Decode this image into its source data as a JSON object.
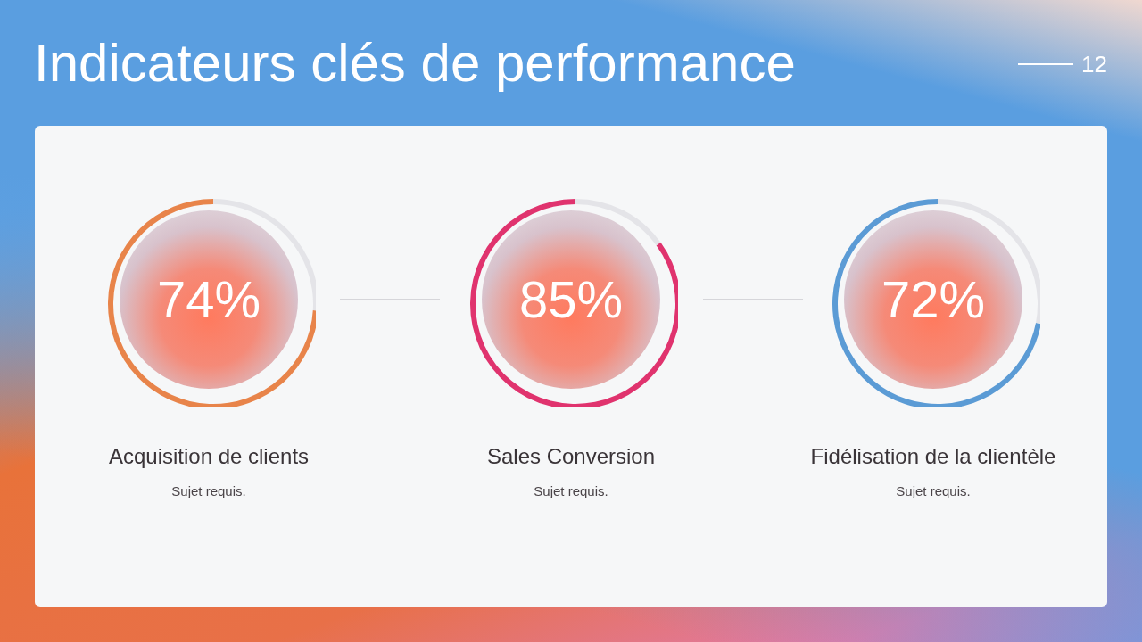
{
  "chart_data": [
    {
      "type": "other",
      "title": "Indicateurs clés de performance",
      "annotations": [
        "12"
      ]
    },
    {
      "type": "donut",
      "title": "Acquisition de clients",
      "subtitle": "Sujet requis.",
      "categories": [
        null,
        null
      ],
      "values": [
        74,
        26
      ],
      "colors": [
        "#e8844a",
        "#e4e4e8"
      ],
      "annotations": [
        "74%"
      ]
    },
    {
      "type": "donut",
      "title": "Sales Conversion",
      "subtitle": "Sujet requis.",
      "categories": [
        null,
        null
      ],
      "values": [
        85,
        15
      ],
      "colors": [
        "#e0336e",
        "#e4e4e8"
      ],
      "annotations": [
        "85%"
      ]
    },
    {
      "type": "donut",
      "title": "Fidélisation de la clientèle",
      "subtitle": "Sujet requis.",
      "categories": [
        null,
        null
      ],
      "values": [
        72,
        28
      ],
      "colors": [
        "#5b9bd5",
        "#e4e4e8"
      ],
      "annotations": [
        "72%"
      ]
    }
  ]
}
